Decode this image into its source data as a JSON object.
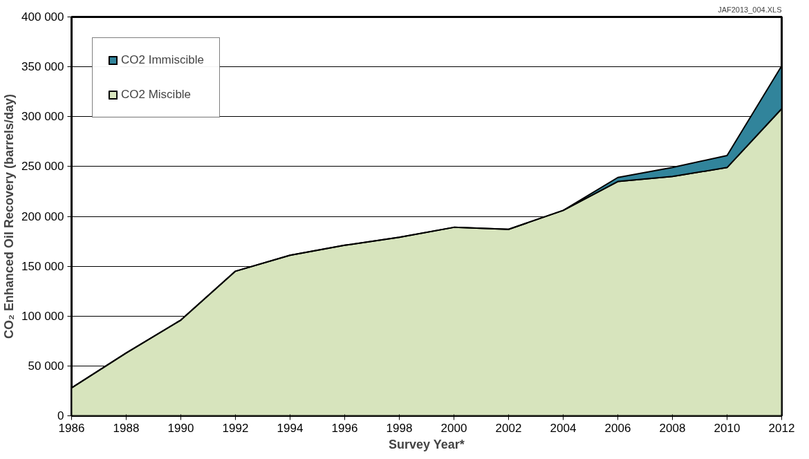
{
  "chart_data": {
    "type": "area",
    "stacked": true,
    "xlabel": "Survey Year*",
    "ylabel": "CO₂ Enhanced Oil Recovery (barrels/day)",
    "annotations": [
      "JAF2013_004.XLS"
    ],
    "x": [
      1986,
      1988,
      1990,
      1992,
      1994,
      1996,
      1998,
      2000,
      2002,
      2004,
      2006,
      2008,
      2010,
      2012
    ],
    "series": [
      {
        "name": "CO2 Miscible",
        "color": "#d7e4bd",
        "values": [
          28000,
          63000,
          96000,
          145000,
          161000,
          171000,
          179000,
          189000,
          187000,
          206000,
          235000,
          240000,
          249000,
          308000
        ]
      },
      {
        "name": "CO2 Immiscible",
        "color": "#31849b",
        "values": [
          0,
          0,
          0,
          0,
          0,
          0,
          0,
          0,
          0,
          0,
          4000,
          9000,
          12000,
          43000
        ]
      }
    ],
    "xlim": [
      1986,
      2012
    ],
    "xticks": [
      1986,
      1988,
      1990,
      1992,
      1994,
      1996,
      1998,
      2000,
      2002,
      2004,
      2006,
      2008,
      2010,
      2012
    ],
    "ylim": [
      0,
      400000
    ],
    "yticks": [
      {
        "value": 0,
        "label": "0"
      },
      {
        "value": 50000,
        "label": "50 000"
      },
      {
        "value": 100000,
        "label": "100 000"
      },
      {
        "value": 150000,
        "label": "150 000"
      },
      {
        "value": 200000,
        "label": "200 000"
      },
      {
        "value": 250000,
        "label": "250 000"
      },
      {
        "value": 300000,
        "label": "300 000"
      },
      {
        "value": 350000,
        "label": "350 000"
      },
      {
        "value": 400000,
        "label": "400 000"
      }
    ],
    "grid": "y",
    "legend": "top left"
  }
}
